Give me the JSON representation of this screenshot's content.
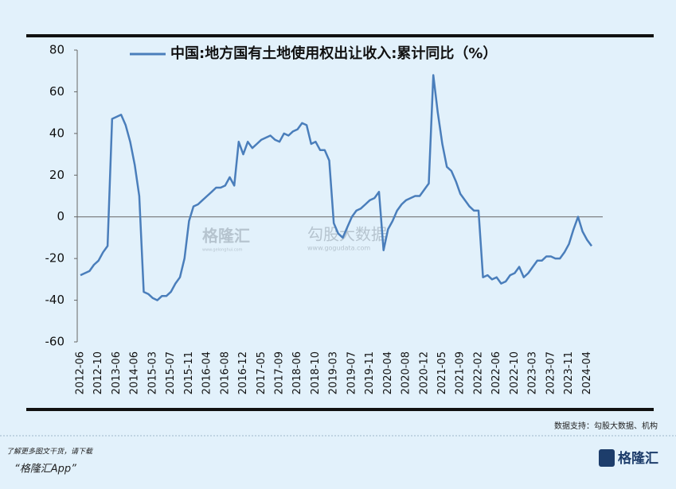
{
  "chart_data": {
    "type": "line",
    "categories": [
      "2012-06",
      null,
      null,
      null,
      "2012-10",
      null,
      null,
      null,
      "2013-06",
      null,
      null,
      null,
      "2014-06",
      null,
      null,
      null,
      "2015-03",
      null,
      null,
      null,
      "2015-07",
      null,
      null,
      null,
      "2015-11",
      null,
      null,
      null,
      "2016-04",
      null,
      null,
      null,
      "2016-08",
      null,
      null,
      null,
      "2016-12",
      null,
      null,
      null,
      "2017-05",
      null,
      null,
      null,
      "2017-09",
      null,
      null,
      null,
      "2018-06",
      null,
      null,
      null,
      "2018-10",
      null,
      null,
      null,
      "2019-03",
      null,
      null,
      null,
      "2019-07",
      null,
      null,
      null,
      "2019-11",
      null,
      null,
      null,
      "2020-04",
      null,
      null,
      null,
      "2020-08",
      null,
      null,
      null,
      "2020-12",
      null,
      null,
      null,
      "2021-05",
      null,
      null,
      null,
      "2021-09",
      null,
      null,
      null,
      "2022-02",
      null,
      null,
      null,
      "2022-06",
      null,
      null,
      null,
      "2022-10",
      null,
      null,
      null,
      "2023-03",
      null,
      null,
      null,
      "2023-07",
      null,
      null,
      null,
      "2023-11",
      null,
      null,
      null,
      "2024-04",
      null
    ],
    "series": [
      {
        "name": "中国:地方国有土地使用权出让收入:累计同比（%）",
        "color": "#4a7ebb",
        "values": [
          -28,
          -27,
          -26,
          -23,
          -21,
          -17,
          -14,
          47,
          48,
          49,
          44,
          36,
          25,
          10,
          -36,
          -37,
          -39,
          -40,
          -38,
          -38,
          -36,
          -32,
          -29,
          -20,
          -2,
          5,
          6,
          8,
          10,
          12,
          14,
          14,
          15,
          19,
          15,
          36,
          30,
          36,
          33,
          35,
          37,
          38,
          39,
          37,
          36,
          40,
          39,
          41,
          42,
          45,
          44,
          35,
          36,
          32,
          32,
          27,
          -3,
          -8,
          -10,
          -5,
          0,
          3,
          4,
          6,
          8,
          9,
          12,
          -16,
          -6,
          -2,
          3,
          6,
          8,
          9,
          10,
          10,
          13,
          16,
          68,
          50,
          35,
          24,
          22,
          17,
          11,
          8,
          5,
          3,
          3,
          -29,
          -28,
          -30,
          -29,
          -32,
          -31,
          -28,
          -27,
          -24,
          -29,
          -27,
          -24,
          -21,
          -21,
          -19,
          -19,
          -20,
          -20,
          -17,
          -13,
          -6,
          0,
          -7,
          -11,
          -14
        ]
      }
    ],
    "ylim": [
      -60,
      80
    ],
    "yticks": [
      80,
      60,
      40,
      20,
      0,
      -20,
      -40,
      -60
    ],
    "source": "数据支持：勾股大数据、机构"
  },
  "watermark": {
    "brand": "格隆汇",
    "brand_url": "www.gelonghui.com",
    "partner": "勾股大数据",
    "partner_url": "www.gogudata.com"
  },
  "footer": {
    "line1": "了解更多图文干货，请下载",
    "line2": "“格隆汇App”",
    "logo": "格隆汇"
  }
}
